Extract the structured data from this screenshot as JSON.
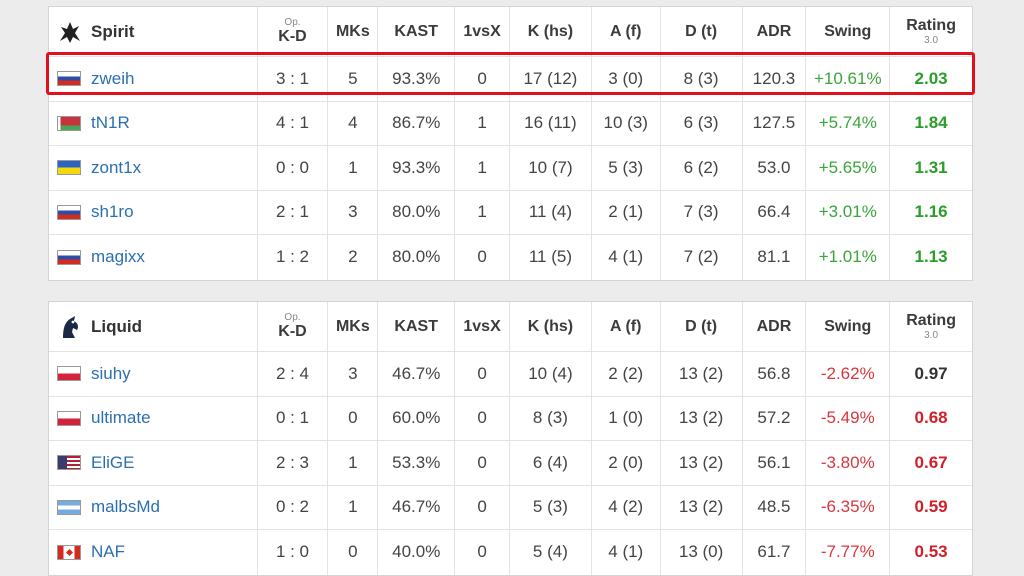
{
  "headers": {
    "kd_sup": "Op.",
    "kd": "K-D",
    "mks": "MKs",
    "kast": "KAST",
    "onevx": "1vsX",
    "k": "K (hs)",
    "a": "A (f)",
    "d": "D (t)",
    "adr": "ADR",
    "swing": "Swing",
    "rating": "Rating",
    "rating_sub": "3.0"
  },
  "teams": [
    {
      "name": "Spirit",
      "logo_icon": "spirit-dragon-logo",
      "players": [
        {
          "flag": "russia-flag",
          "name": "zweih",
          "kd": "3 : 1",
          "mks": "5",
          "kast": "93.3%",
          "onevx": "0",
          "k": "17 (12)",
          "a": "3 (0)",
          "d": "8 (3)",
          "adr": "120.3",
          "swing": "+10.61%",
          "rating": "2.03"
        },
        {
          "flag": "belarus-flag",
          "name": "tN1R",
          "kd": "4 : 1",
          "mks": "4",
          "kast": "86.7%",
          "onevx": "1",
          "k": "16 (11)",
          "a": "10 (3)",
          "d": "6 (3)",
          "adr": "127.5",
          "swing": "+5.74%",
          "rating": "1.84"
        },
        {
          "flag": "ukraine-flag",
          "name": "zont1x",
          "kd": "0 : 0",
          "mks": "1",
          "kast": "93.3%",
          "onevx": "1",
          "k": "10 (7)",
          "a": "5 (3)",
          "d": "6 (2)",
          "adr": "53.0",
          "swing": "+5.65%",
          "rating": "1.31"
        },
        {
          "flag": "russia-flag",
          "name": "sh1ro",
          "kd": "2 : 1",
          "mks": "3",
          "kast": "80.0%",
          "onevx": "1",
          "k": "11 (4)",
          "a": "2 (1)",
          "d": "7 (3)",
          "adr": "66.4",
          "swing": "+3.01%",
          "rating": "1.16"
        },
        {
          "flag": "russia-flag",
          "name": "magixx",
          "kd": "1 : 2",
          "mks": "2",
          "kast": "80.0%",
          "onevx": "0",
          "k": "11 (5)",
          "a": "4 (1)",
          "d": "7 (2)",
          "adr": "81.1",
          "swing": "+1.01%",
          "rating": "1.13"
        }
      ]
    },
    {
      "name": "Liquid",
      "logo_icon": "liquid-horse-logo",
      "players": [
        {
          "flag": "poland-flag",
          "name": "siuhy",
          "kd": "2 : 4",
          "mks": "3",
          "kast": "46.7%",
          "onevx": "0",
          "k": "10 (4)",
          "a": "2 (2)",
          "d": "13 (2)",
          "adr": "56.8",
          "swing": "-2.62%",
          "rating": "0.97"
        },
        {
          "flag": "poland-flag",
          "name": "ultimate",
          "kd": "0 : 1",
          "mks": "0",
          "kast": "60.0%",
          "onevx": "0",
          "k": "8 (3)",
          "a": "1 (0)",
          "d": "13 (2)",
          "adr": "57.2",
          "swing": "-5.49%",
          "rating": "0.68"
        },
        {
          "flag": "usa-flag",
          "name": "EliGE",
          "kd": "2 : 3",
          "mks": "1",
          "kast": "53.3%",
          "onevx": "0",
          "k": "6 (4)",
          "a": "2 (0)",
          "d": "13 (2)",
          "adr": "56.1",
          "swing": "-3.80%",
          "rating": "0.67"
        },
        {
          "flag": "argentina-flag",
          "name": "malbsMd",
          "kd": "0 : 2",
          "mks": "1",
          "kast": "46.7%",
          "onevx": "0",
          "k": "5 (3)",
          "a": "4 (2)",
          "d": "13 (2)",
          "adr": "48.5",
          "swing": "-6.35%",
          "rating": "0.59"
        },
        {
          "flag": "canada-flag",
          "name": "NAF",
          "kd": "1 : 0",
          "mks": "0",
          "kast": "40.0%",
          "onevx": "0",
          "k": "5 (4)",
          "a": "4 (1)",
          "d": "13 (0)",
          "adr": "61.7",
          "swing": "-7.77%",
          "rating": "0.53"
        }
      ]
    }
  ],
  "colors": {
    "highlight": "#e0101c",
    "positive": "#3aa53a",
    "negative": "#d9363e",
    "player_link": "#2b6fb0"
  }
}
